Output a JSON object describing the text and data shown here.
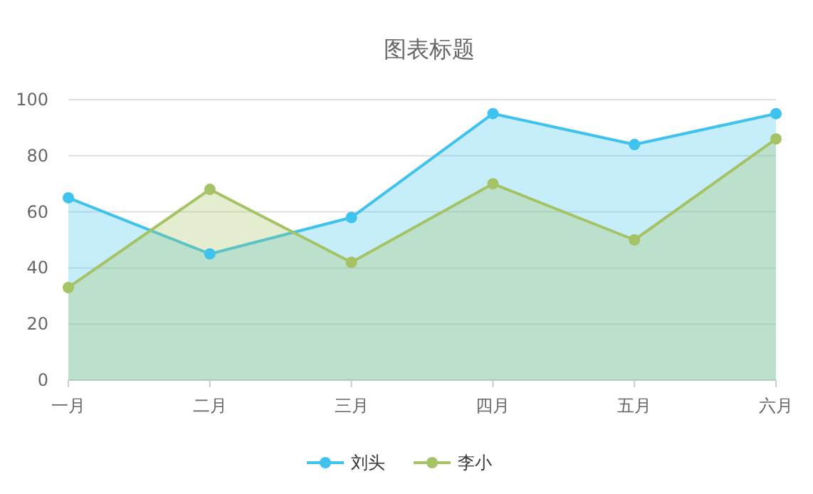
{
  "chart_data": {
    "type": "area",
    "title": "图表标题",
    "categories": [
      "一月",
      "二月",
      "三月",
      "四月",
      "五月",
      "六月"
    ],
    "series": [
      {
        "name": "刘头",
        "color": "#3fc3ee",
        "values": [
          65,
          45,
          58,
          95,
          84,
          95
        ]
      },
      {
        "name": "李小",
        "color": "#a5c365",
        "values": [
          33,
          68,
          42,
          70,
          50,
          86
        ]
      }
    ],
    "ylim": [
      0,
      100
    ],
    "yticks": [
      0,
      20,
      40,
      60,
      80,
      100
    ],
    "grid": "y",
    "legend": "bottom",
    "marker": "circle",
    "line_style": "solid"
  }
}
